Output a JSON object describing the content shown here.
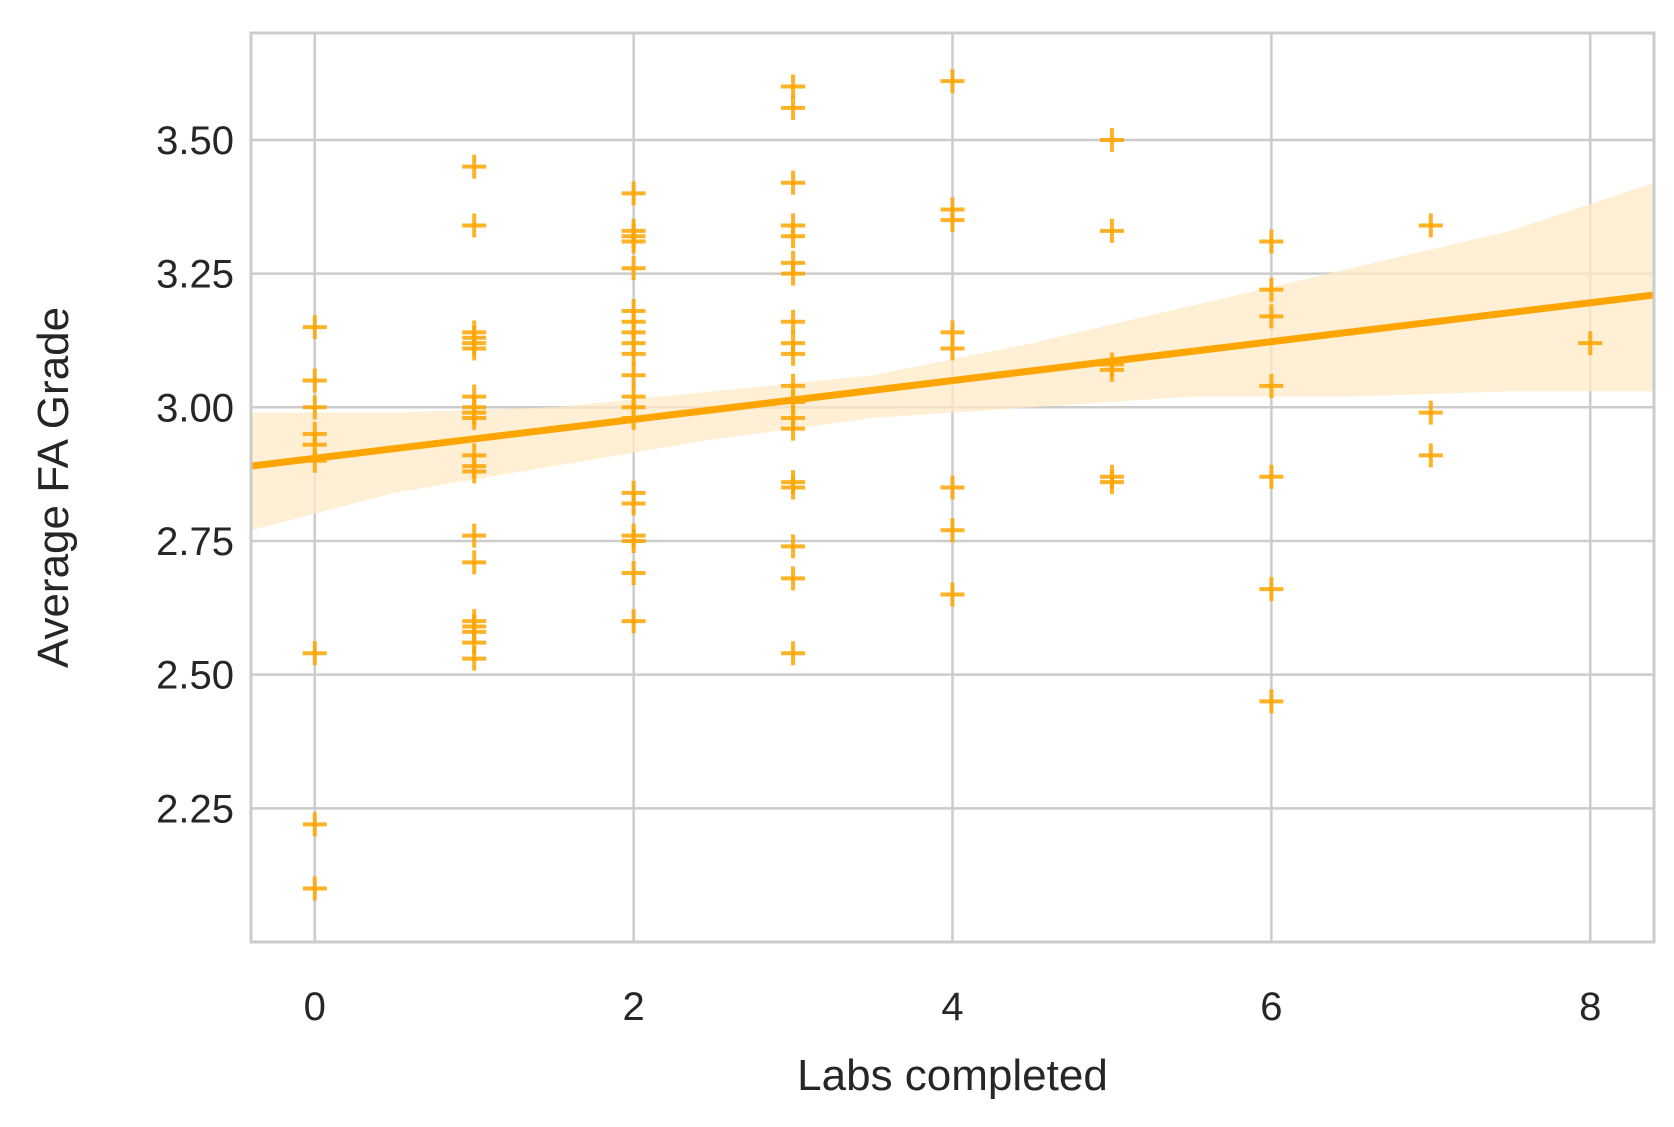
{
  "chart_data": {
    "type": "scatter",
    "xlabel": "Labs completed",
    "ylabel": "Average FA Grade",
    "xlim": [
      -0.4,
      8.4
    ],
    "ylim": [
      2.0,
      3.7
    ],
    "xticks": [
      0,
      2,
      4,
      6,
      8
    ],
    "xtick_labels": [
      "0",
      "2",
      "4",
      "6",
      "8"
    ],
    "yticks": [
      2.25,
      2.5,
      2.75,
      3.0,
      3.25,
      3.5
    ],
    "ytick_labels": [
      "2.25",
      "2.50",
      "2.75",
      "3.00",
      "3.25",
      "3.50"
    ],
    "grid": true,
    "marker": "+",
    "colors": {
      "points": "#ffa500",
      "line": "#ffa500",
      "band": "#ffe9c7",
      "grid": "#cccccc",
      "text": "#262626"
    },
    "series": [
      {
        "points": [
          [
            0,
            3.15
          ],
          [
            0,
            3.05
          ],
          [
            0,
            3.0
          ],
          [
            0,
            2.95
          ],
          [
            0,
            2.93
          ],
          [
            0,
            2.9
          ],
          [
            0,
            2.54
          ],
          [
            0,
            2.22
          ],
          [
            0,
            2.1
          ],
          [
            1,
            3.45
          ],
          [
            1,
            3.34
          ],
          [
            1,
            3.14
          ],
          [
            1,
            3.13
          ],
          [
            1,
            3.12
          ],
          [
            1,
            3.11
          ],
          [
            1,
            3.02
          ],
          [
            1,
            3.0
          ],
          [
            1,
            2.99
          ],
          [
            1,
            2.98
          ],
          [
            1,
            2.91
          ],
          [
            1,
            2.89
          ],
          [
            1,
            2.88
          ],
          [
            1,
            2.76
          ],
          [
            1,
            2.71
          ],
          [
            1,
            2.6
          ],
          [
            1,
            2.59
          ],
          [
            1,
            2.58
          ],
          [
            1,
            2.56
          ],
          [
            1,
            2.53
          ],
          [
            2,
            3.4
          ],
          [
            2,
            3.33
          ],
          [
            2,
            3.32
          ],
          [
            2,
            3.31
          ],
          [
            2,
            3.26
          ],
          [
            2,
            3.18
          ],
          [
            2,
            3.16
          ],
          [
            2,
            3.14
          ],
          [
            2,
            3.12
          ],
          [
            2,
            3.1
          ],
          [
            2,
            3.06
          ],
          [
            2,
            3.02
          ],
          [
            2,
            3.0
          ],
          [
            2,
            2.98
          ],
          [
            2,
            2.84
          ],
          [
            2,
            2.82
          ],
          [
            2,
            2.76
          ],
          [
            2,
            2.75
          ],
          [
            2,
            2.69
          ],
          [
            2,
            2.6
          ],
          [
            3,
            3.6
          ],
          [
            3,
            3.56
          ],
          [
            3,
            3.42
          ],
          [
            3,
            3.34
          ],
          [
            3,
            3.32
          ],
          [
            3,
            3.27
          ],
          [
            3,
            3.25
          ],
          [
            3,
            3.16
          ],
          [
            3,
            3.12
          ],
          [
            3,
            3.1
          ],
          [
            3,
            3.04
          ],
          [
            3,
            3.01
          ],
          [
            3,
            2.98
          ],
          [
            3,
            2.96
          ],
          [
            3,
            2.86
          ],
          [
            3,
            2.85
          ],
          [
            3,
            2.74
          ],
          [
            3,
            2.68
          ],
          [
            3,
            2.54
          ],
          [
            4,
            3.61
          ],
          [
            4,
            3.37
          ],
          [
            4,
            3.35
          ],
          [
            4,
            3.14
          ],
          [
            4,
            3.11
          ],
          [
            4,
            2.85
          ],
          [
            4,
            2.77
          ],
          [
            4,
            2.65
          ],
          [
            5,
            3.5
          ],
          [
            5,
            3.33
          ],
          [
            5,
            3.08
          ],
          [
            5,
            3.07
          ],
          [
            5,
            2.87
          ],
          [
            5,
            2.86
          ],
          [
            6,
            3.31
          ],
          [
            6,
            3.22
          ],
          [
            6,
            3.17
          ],
          [
            6,
            3.04
          ],
          [
            6,
            2.87
          ],
          [
            6,
            2.66
          ],
          [
            6,
            2.45
          ],
          [
            7,
            3.34
          ],
          [
            7,
            2.99
          ],
          [
            7,
            2.91
          ],
          [
            8,
            3.12
          ]
        ]
      }
    ],
    "regression": {
      "x": [
        -0.4,
        8.4
      ],
      "y": [
        2.89,
        3.21
      ]
    },
    "confidence_band": {
      "x": [
        -0.4,
        0.5,
        1.5,
        2.5,
        3.5,
        4.5,
        5.5,
        6.5,
        7.5,
        8.4
      ],
      "upper": [
        2.99,
        2.99,
        3.0,
        3.03,
        3.06,
        3.12,
        3.19,
        3.26,
        3.33,
        3.42
      ],
      "lower": [
        2.77,
        2.84,
        2.89,
        2.94,
        2.98,
        3.0,
        3.02,
        3.02,
        3.03,
        3.03
      ]
    }
  }
}
